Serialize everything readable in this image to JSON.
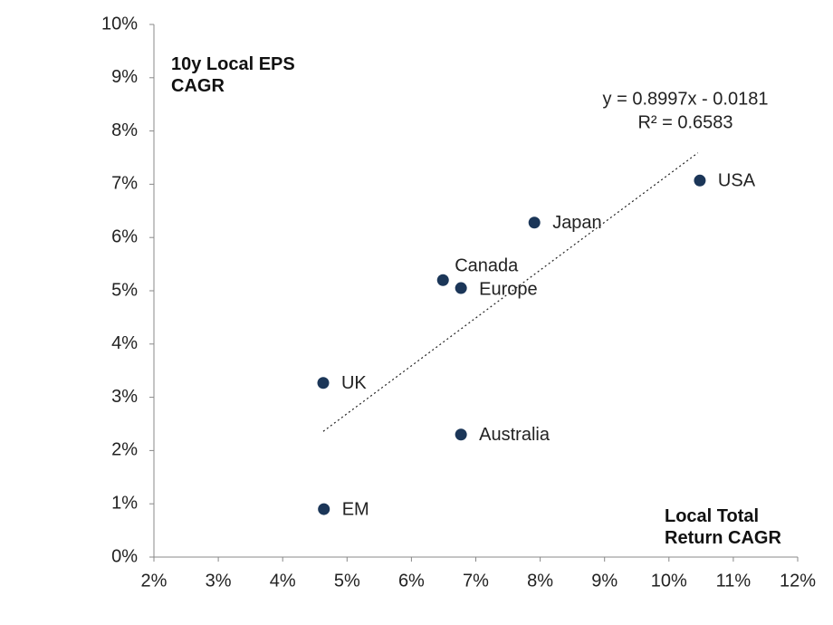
{
  "chart_data": {
    "type": "scatter",
    "y_label": "10y Local EPS\nCAGR",
    "x_label": "Local Total\nReturn CAGR",
    "annotations": [
      "y = 0.8997x - 0.0181",
      "R² = 0.6583"
    ],
    "labels": [
      "USA",
      "Japan",
      "Canada",
      "Europe",
      "UK",
      "Australia",
      "EM"
    ],
    "x": [
      10.48,
      7.91,
      6.49,
      6.77,
      4.63,
      6.77,
      4.64
    ],
    "values": [
      7.07,
      6.28,
      5.2,
      5.05,
      3.27,
      2.3,
      0.9
    ],
    "color": "#1b3658",
    "trendline": {
      "x": [
        4.63,
        10.45
      ],
      "values": [
        2.36,
        7.59
      ]
    },
    "xlim": [
      2,
      12
    ],
    "ylim": [
      0,
      10
    ],
    "xticks": [
      {
        "value": 2,
        "label": "2%"
      },
      {
        "value": 3,
        "label": "3%"
      },
      {
        "value": 4,
        "label": "4%"
      },
      {
        "value": 5,
        "label": "5%"
      },
      {
        "value": 6,
        "label": "6%"
      },
      {
        "value": 7,
        "label": "7%"
      },
      {
        "value": 8,
        "label": "8%"
      },
      {
        "value": 9,
        "label": "9%"
      },
      {
        "value": 10,
        "label": "10%"
      },
      {
        "value": 11,
        "label": "11%"
      },
      {
        "value": 12,
        "label": "12%"
      }
    ],
    "yticks": [
      {
        "value": 0,
        "label": "0%"
      },
      {
        "value": 1,
        "label": "1%"
      },
      {
        "value": 2,
        "label": "2%"
      },
      {
        "value": 3,
        "label": "3%"
      },
      {
        "value": 4,
        "label": "4%"
      },
      {
        "value": 5,
        "label": "5%"
      },
      {
        "value": 6,
        "label": "6%"
      },
      {
        "value": 7,
        "label": "7%"
      },
      {
        "value": 8,
        "label": "8%"
      },
      {
        "value": 9,
        "label": "9%"
      },
      {
        "value": 10,
        "label": "10%"
      }
    ],
    "grid": false
  }
}
